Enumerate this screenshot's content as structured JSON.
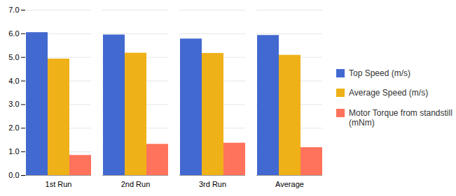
{
  "chart_data": {
    "type": "bar",
    "categories": [
      "1st Run",
      "2nd Run",
      "3rd Run",
      "Average"
    ],
    "series": [
      {
        "name": "Top Speed (m/s)",
        "values": [
          6.05,
          5.95,
          5.78,
          5.93
        ]
      },
      {
        "name": "Average Speed (m/s)",
        "values": [
          4.93,
          5.18,
          5.17,
          5.09
        ]
      },
      {
        "name": "Motor Torque from standstill\n(mNm)",
        "values": [
          0.85,
          1.32,
          1.37,
          1.18
        ]
      }
    ],
    "ylim": [
      0,
      7
    ],
    "yticks": [
      0,
      1,
      2,
      3,
      4,
      5,
      6,
      7
    ],
    "grid": true,
    "legend": "right"
  }
}
